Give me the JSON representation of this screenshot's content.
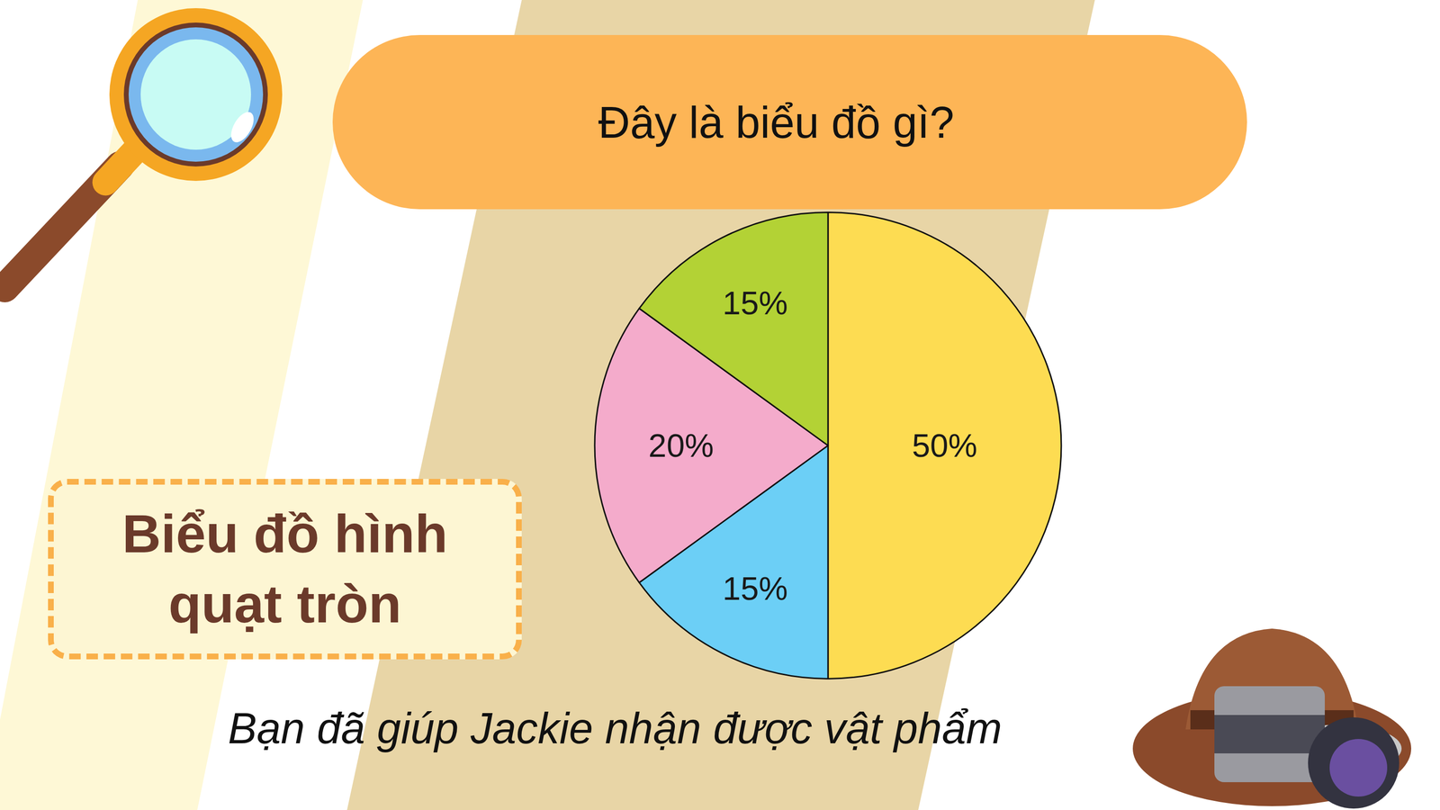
{
  "chart_data": {
    "type": "pie",
    "title": "Đây là biểu đồ gì?",
    "values": [
      50,
      15,
      20,
      15
    ],
    "value_labels": [
      "50%",
      "15%",
      "20%",
      "15%"
    ],
    "colors": [
      "#fddc52",
      "#6ccff6",
      "#f4abcb",
      "#b3d235"
    ],
    "data_labels": true,
    "annotations": [
      "Biểu đồ hình quạt tròn",
      "Bạn đã giúp Jackie nhận được vật phẩm"
    ]
  }
}
